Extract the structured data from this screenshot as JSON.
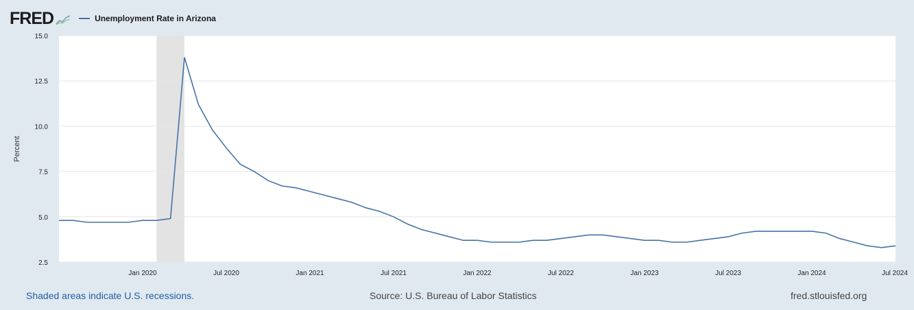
{
  "header": {
    "logo_text": "FRED",
    "series_title": "Unemployment Rate in Arizona"
  },
  "footer": {
    "recession_note": "Shaded areas indicate U.S. recessions.",
    "source": "Source: U.S. Bureau of Labor Statistics",
    "site": "fred.stlouisfed.org"
  },
  "colors": {
    "line": "#4572a7",
    "recession": "#e3e3e3",
    "background": "#e1e9f0",
    "plot": "#ffffff",
    "grid": "#e6e6e6"
  },
  "chart_data": {
    "type": "line",
    "title": "",
    "xlabel": "",
    "ylabel": "Percent",
    "ylim": [
      2.5,
      15.0
    ],
    "yticks": [
      2.5,
      5.0,
      7.5,
      10.0,
      12.5,
      15.0
    ],
    "ytick_labels": [
      "2.5",
      "5.0",
      "7.5",
      "10.0",
      "12.5",
      "15.0"
    ],
    "xlim": [
      "2019-07",
      "2024-07"
    ],
    "xticks": [
      "2020-01",
      "2020-07",
      "2021-01",
      "2021-07",
      "2022-01",
      "2022-07",
      "2023-01",
      "2023-07",
      "2024-01",
      "2024-07"
    ],
    "xtick_labels": [
      "Jan 2020",
      "Jul 2020",
      "Jan 2021",
      "Jul 2021",
      "Jan 2022",
      "Jul 2022",
      "Jan 2023",
      "Jul 2023",
      "Jan 2024",
      "Jul 2024"
    ],
    "grid": true,
    "recessions": [
      {
        "start": "2020-02",
        "end": "2020-04"
      }
    ],
    "series": [
      {
        "name": "Unemployment Rate in Arizona",
        "x": [
          "2019-07",
          "2019-08",
          "2019-09",
          "2019-10",
          "2019-11",
          "2019-12",
          "2020-01",
          "2020-02",
          "2020-03",
          "2020-04",
          "2020-05",
          "2020-06",
          "2020-07",
          "2020-08",
          "2020-09",
          "2020-10",
          "2020-11",
          "2020-12",
          "2021-01",
          "2021-02",
          "2021-03",
          "2021-04",
          "2021-05",
          "2021-06",
          "2021-07",
          "2021-08",
          "2021-09",
          "2021-10",
          "2021-11",
          "2021-12",
          "2022-01",
          "2022-02",
          "2022-03",
          "2022-04",
          "2022-05",
          "2022-06",
          "2022-07",
          "2022-08",
          "2022-09",
          "2022-10",
          "2022-11",
          "2022-12",
          "2023-01",
          "2023-02",
          "2023-03",
          "2023-04",
          "2023-05",
          "2023-06",
          "2023-07",
          "2023-08",
          "2023-09",
          "2023-10",
          "2023-11",
          "2023-12",
          "2024-01",
          "2024-02",
          "2024-03",
          "2024-04",
          "2024-05",
          "2024-06",
          "2024-07"
        ],
        "values": [
          4.8,
          4.8,
          4.7,
          4.7,
          4.7,
          4.7,
          4.8,
          4.8,
          4.9,
          13.8,
          11.2,
          9.8,
          8.8,
          7.9,
          7.5,
          7.0,
          6.7,
          6.6,
          6.4,
          6.2,
          6.0,
          5.8,
          5.5,
          5.3,
          5.0,
          4.6,
          4.3,
          4.1,
          3.9,
          3.7,
          3.7,
          3.6,
          3.6,
          3.6,
          3.7,
          3.7,
          3.8,
          3.9,
          4.0,
          4.0,
          3.9,
          3.8,
          3.7,
          3.7,
          3.6,
          3.6,
          3.7,
          3.8,
          3.9,
          4.1,
          4.2,
          4.2,
          4.2,
          4.2,
          4.2,
          4.1,
          3.8,
          3.6,
          3.4,
          3.3,
          3.4
        ]
      }
    ]
  }
}
